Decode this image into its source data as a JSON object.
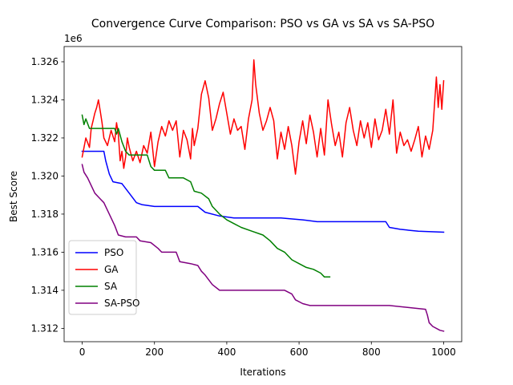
{
  "chart_data": {
    "type": "line",
    "title": "Convergence Curve Comparison: PSO vs GA vs SA vs SA-PSO",
    "xlabel": "Iterations",
    "ylabel": "Best Score",
    "y_offset_label": "1e6",
    "xlim": [
      -50,
      1050
    ],
    "ylim": [
      1311.3,
      1326.8
    ],
    "x_ticks": [
      0,
      200,
      400,
      600,
      800,
      1000
    ],
    "y_ticks": [
      1312,
      1314,
      1316,
      1318,
      1320,
      1322,
      1324,
      1326
    ],
    "y_tick_labels": [
      "1.312",
      "1.314",
      "1.316",
      "1.318",
      "1.320",
      "1.322",
      "1.324",
      "1.326"
    ],
    "grid": false,
    "legend_position": "lower-left",
    "y_unit_note": "values in thousands (x1e3) so that label = value/1000 with 1e6 offset",
    "series": [
      {
        "name": "PSO",
        "color": "#0000ff",
        "points": [
          [
            0,
            1321.3
          ],
          [
            60,
            1321.3
          ],
          [
            65,
            1320.8
          ],
          [
            75,
            1320.1
          ],
          [
            85,
            1319.7
          ],
          [
            110,
            1319.6
          ],
          [
            130,
            1319.1
          ],
          [
            150,
            1318.6
          ],
          [
            165,
            1318.5
          ],
          [
            200,
            1318.4
          ],
          [
            320,
            1318.4
          ],
          [
            340,
            1318.1
          ],
          [
            380,
            1317.9
          ],
          [
            420,
            1317.8
          ],
          [
            550,
            1317.8
          ],
          [
            610,
            1317.7
          ],
          [
            650,
            1317.6
          ],
          [
            840,
            1317.6
          ],
          [
            850,
            1317.3
          ],
          [
            880,
            1317.2
          ],
          [
            930,
            1317.1
          ],
          [
            1000,
            1317.05
          ]
        ]
      },
      {
        "name": "GA",
        "color": "#ff0000",
        "points": [
          [
            0,
            1321.0
          ],
          [
            10,
            1322.0
          ],
          [
            20,
            1321.5
          ],
          [
            25,
            1322.5
          ],
          [
            30,
            1322.9
          ],
          [
            35,
            1323.3
          ],
          [
            40,
            1323.6
          ],
          [
            45,
            1324.0
          ],
          [
            50,
            1323.4
          ],
          [
            55,
            1322.8
          ],
          [
            60,
            1322.0
          ],
          [
            70,
            1321.6
          ],
          [
            80,
            1322.4
          ],
          [
            90,
            1321.8
          ],
          [
            95,
            1322.8
          ],
          [
            100,
            1322.2
          ],
          [
            105,
            1320.8
          ],
          [
            110,
            1321.3
          ],
          [
            115,
            1320.4
          ],
          [
            120,
            1321.0
          ],
          [
            125,
            1322.0
          ],
          [
            130,
            1321.5
          ],
          [
            140,
            1320.8
          ],
          [
            150,
            1321.3
          ],
          [
            160,
            1320.7
          ],
          [
            170,
            1321.6
          ],
          [
            180,
            1321.2
          ],
          [
            190,
            1322.3
          ],
          [
            195,
            1321.4
          ],
          [
            200,
            1320.5
          ],
          [
            210,
            1321.8
          ],
          [
            220,
            1322.6
          ],
          [
            230,
            1322.1
          ],
          [
            240,
            1322.9
          ],
          [
            250,
            1322.4
          ],
          [
            260,
            1322.9
          ],
          [
            270,
            1321.0
          ],
          [
            280,
            1322.4
          ],
          [
            290,
            1321.9
          ],
          [
            300,
            1320.9
          ],
          [
            305,
            1322.5
          ],
          [
            310,
            1321.6
          ],
          [
            320,
            1322.5
          ],
          [
            330,
            1324.3
          ],
          [
            340,
            1325.0
          ],
          [
            350,
            1324.1
          ],
          [
            360,
            1322.4
          ],
          [
            370,
            1323.0
          ],
          [
            380,
            1323.8
          ],
          [
            390,
            1324.4
          ],
          [
            400,
            1323.3
          ],
          [
            410,
            1322.2
          ],
          [
            420,
            1323.0
          ],
          [
            430,
            1322.4
          ],
          [
            440,
            1322.6
          ],
          [
            450,
            1321.4
          ],
          [
            460,
            1323.0
          ],
          [
            470,
            1324.0
          ],
          [
            475,
            1326.1
          ],
          [
            480,
            1324.8
          ],
          [
            490,
            1323.3
          ],
          [
            500,
            1322.4
          ],
          [
            510,
            1322.9
          ],
          [
            520,
            1323.6
          ],
          [
            530,
            1322.9
          ],
          [
            540,
            1320.9
          ],
          [
            550,
            1322.3
          ],
          [
            560,
            1321.4
          ],
          [
            570,
            1322.6
          ],
          [
            580,
            1321.6
          ],
          [
            590,
            1320.1
          ],
          [
            600,
            1321.8
          ],
          [
            610,
            1322.9
          ],
          [
            620,
            1321.7
          ],
          [
            630,
            1323.2
          ],
          [
            640,
            1322.3
          ],
          [
            650,
            1321.0
          ],
          [
            660,
            1322.5
          ],
          [
            670,
            1321.1
          ],
          [
            680,
            1324.0
          ],
          [
            690,
            1322.7
          ],
          [
            700,
            1321.6
          ],
          [
            710,
            1322.3
          ],
          [
            720,
            1321.0
          ],
          [
            730,
            1322.8
          ],
          [
            740,
            1323.6
          ],
          [
            750,
            1322.4
          ],
          [
            760,
            1321.6
          ],
          [
            770,
            1322.9
          ],
          [
            780,
            1322.0
          ],
          [
            790,
            1322.8
          ],
          [
            800,
            1321.5
          ],
          [
            810,
            1323.0
          ],
          [
            820,
            1321.9
          ],
          [
            830,
            1322.4
          ],
          [
            840,
            1323.5
          ],
          [
            850,
            1322.2
          ],
          [
            860,
            1324.0
          ],
          [
            870,
            1321.2
          ],
          [
            880,
            1322.3
          ],
          [
            890,
            1321.6
          ],
          [
            900,
            1321.9
          ],
          [
            910,
            1321.3
          ],
          [
            920,
            1321.9
          ],
          [
            930,
            1322.6
          ],
          [
            940,
            1321.0
          ],
          [
            950,
            1322.1
          ],
          [
            960,
            1321.4
          ],
          [
            970,
            1322.4
          ],
          [
            980,
            1325.2
          ],
          [
            985,
            1323.6
          ],
          [
            990,
            1324.8
          ],
          [
            995,
            1323.5
          ],
          [
            1000,
            1325.0
          ]
        ]
      },
      {
        "name": "SA",
        "color": "#008000",
        "points": [
          [
            0,
            1323.2
          ],
          [
            5,
            1322.7
          ],
          [
            10,
            1323.0
          ],
          [
            20,
            1322.5
          ],
          [
            90,
            1322.5
          ],
          [
            95,
            1322.2
          ],
          [
            100,
            1322.5
          ],
          [
            110,
            1321.8
          ],
          [
            120,
            1321.3
          ],
          [
            130,
            1321.1
          ],
          [
            180,
            1321.1
          ],
          [
            190,
            1320.5
          ],
          [
            200,
            1320.3
          ],
          [
            230,
            1320.3
          ],
          [
            240,
            1319.9
          ],
          [
            280,
            1319.9
          ],
          [
            300,
            1319.7
          ],
          [
            310,
            1319.2
          ],
          [
            330,
            1319.1
          ],
          [
            350,
            1318.8
          ],
          [
            360,
            1318.4
          ],
          [
            380,
            1318.0
          ],
          [
            400,
            1317.7
          ],
          [
            420,
            1317.5
          ],
          [
            440,
            1317.3
          ],
          [
            470,
            1317.1
          ],
          [
            500,
            1316.9
          ],
          [
            520,
            1316.6
          ],
          [
            540,
            1316.2
          ],
          [
            560,
            1316.0
          ],
          [
            580,
            1315.6
          ],
          [
            600,
            1315.4
          ],
          [
            620,
            1315.2
          ],
          [
            640,
            1315.1
          ],
          [
            660,
            1314.9
          ],
          [
            670,
            1314.7
          ],
          [
            685,
            1314.7
          ]
        ]
      },
      {
        "name": "SA-PSO",
        "color": "#800080",
        "points": [
          [
            0,
            1320.6
          ],
          [
            5,
            1320.2
          ],
          [
            15,
            1319.9
          ],
          [
            25,
            1319.5
          ],
          [
            35,
            1319.1
          ],
          [
            45,
            1318.9
          ],
          [
            60,
            1318.6
          ],
          [
            70,
            1318.2
          ],
          [
            80,
            1317.8
          ],
          [
            90,
            1317.4
          ],
          [
            100,
            1316.9
          ],
          [
            120,
            1316.8
          ],
          [
            150,
            1316.8
          ],
          [
            160,
            1316.6
          ],
          [
            190,
            1316.5
          ],
          [
            210,
            1316.2
          ],
          [
            220,
            1316.0
          ],
          [
            260,
            1316.0
          ],
          [
            270,
            1315.5
          ],
          [
            300,
            1315.4
          ],
          [
            320,
            1315.3
          ],
          [
            330,
            1315.0
          ],
          [
            340,
            1314.8
          ],
          [
            360,
            1314.3
          ],
          [
            380,
            1314.0
          ],
          [
            560,
            1314.0
          ],
          [
            580,
            1313.8
          ],
          [
            590,
            1313.5
          ],
          [
            610,
            1313.3
          ],
          [
            630,
            1313.2
          ],
          [
            780,
            1313.2
          ],
          [
            800,
            1313.2
          ],
          [
            850,
            1313.2
          ],
          [
            900,
            1313.1
          ],
          [
            950,
            1313.0
          ],
          [
            955,
            1312.7
          ],
          [
            960,
            1312.3
          ],
          [
            970,
            1312.1
          ],
          [
            990,
            1311.9
          ],
          [
            1000,
            1311.85
          ]
        ]
      }
    ]
  }
}
